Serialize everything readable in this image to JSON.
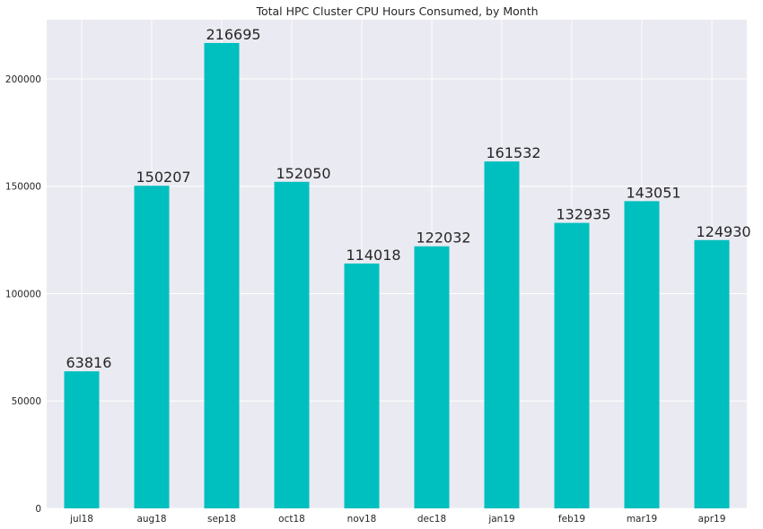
{
  "chart_data": {
    "type": "bar",
    "title": "Total HPC Cluster CPU Hours Consumed, by Month",
    "xlabel": "",
    "ylabel": "",
    "categories": [
      "jul18",
      "aug18",
      "sep18",
      "oct18",
      "nov18",
      "dec18",
      "jan19",
      "feb19",
      "mar19",
      "apr19"
    ],
    "values": [
      63816,
      150207,
      216695,
      152050,
      114018,
      122032,
      161532,
      132935,
      143051,
      124930
    ],
    "ylim": [
      0,
      227530
    ],
    "yticks": [
      0,
      50000,
      100000,
      150000,
      200000
    ],
    "grid": true,
    "legend": "none",
    "colors": {
      "bar": "#00bfbf",
      "plot_bg": "#eaeaf2",
      "grid": "#ffffff",
      "text": "#262626"
    }
  }
}
